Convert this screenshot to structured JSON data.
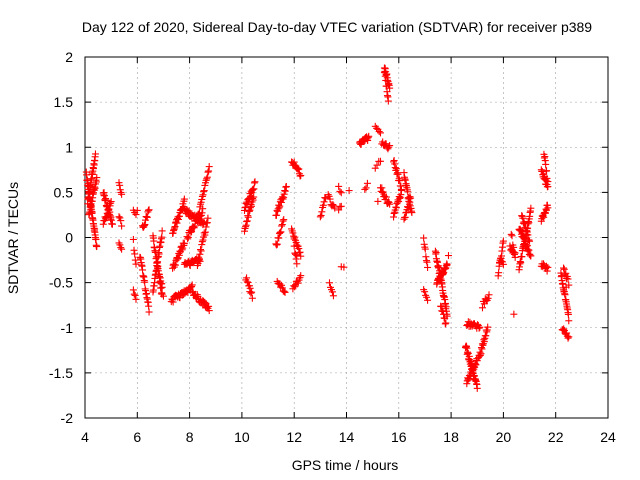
{
  "chart_data": {
    "type": "scatter",
    "title": "Day 122 of 2020, Sidereal Day-to-day VTEC variation (SDTVAR) for receiver p389",
    "xlabel": "GPS time / hours",
    "ylabel": "SDTVAR / TECUs",
    "xlim": [
      4,
      24
    ],
    "ylim": [
      -2,
      2
    ],
    "xticks": [
      4,
      6,
      8,
      10,
      12,
      14,
      16,
      18,
      20,
      22,
      24
    ],
    "yticks": [
      -2,
      -1.5,
      -1,
      -0.5,
      0,
      0.5,
      1,
      1.5,
      2
    ],
    "xtick_labels": [
      "4",
      "6",
      "8",
      "10",
      "12",
      "14",
      "16",
      "18",
      "20",
      "22",
      "24"
    ],
    "ytick_labels": [
      "-2",
      "-1.5",
      "-1",
      "-0.5",
      "0",
      "0.5",
      "1",
      "1.5",
      "2"
    ],
    "grid": true,
    "marker": "+",
    "color": "#ff0000",
    "series": [
      {
        "name": "a1",
        "x0": 4.05,
        "x1": 4.45,
        "y0": 0.7,
        "y1": -0.1,
        "n": 40
      },
      {
        "name": "a2",
        "x0": 4.1,
        "x1": 4.4,
        "y0": 0.4,
        "y1": 0.9,
        "n": 25
      },
      {
        "name": "a3",
        "x0": 4.15,
        "x1": 4.45,
        "y0": 0.25,
        "y1": 0.65,
        "n": 20
      },
      {
        "name": "a4",
        "x0": 4.7,
        "x1": 5.05,
        "y0": 0.5,
        "y1": 0.15,
        "n": 25
      },
      {
        "name": "a5",
        "x0": 4.7,
        "x1": 5.0,
        "y0": 0.15,
        "y1": 0.4,
        "n": 15
      },
      {
        "name": "a6",
        "x0": 5.3,
        "x1": 5.4,
        "y0": 0.6,
        "y1": 0.45,
        "n": 5
      },
      {
        "name": "a7",
        "x0": 5.3,
        "x1": 5.4,
        "y0": 0.25,
        "y1": 0.15,
        "n": 4
      },
      {
        "name": "a8",
        "x0": 5.3,
        "x1": 5.4,
        "y0": -0.05,
        "y1": -0.15,
        "n": 4
      },
      {
        "name": "b1",
        "x0": 5.85,
        "x1": 5.95,
        "y0": 0.3,
        "y1": 0.25,
        "n": 3
      },
      {
        "name": "b2",
        "x0": 5.85,
        "x1": 5.95,
        "y0": -0.05,
        "y1": -0.3,
        "n": 5
      },
      {
        "name": "b3",
        "x0": 5.85,
        "x1": 5.95,
        "y0": -0.6,
        "y1": -0.7,
        "n": 4
      },
      {
        "name": "b4",
        "x0": 6.1,
        "x1": 6.45,
        "y0": -0.2,
        "y1": -0.8,
        "n": 22
      },
      {
        "name": "b5",
        "x0": 6.2,
        "x1": 6.45,
        "y0": 0.1,
        "y1": 0.3,
        "n": 12
      },
      {
        "name": "b6",
        "x0": 6.6,
        "x1": 6.95,
        "y0": 0.0,
        "y1": -0.65,
        "n": 25
      },
      {
        "name": "b7",
        "x0": 6.6,
        "x1": 6.95,
        "y0": -0.6,
        "y1": 0.05,
        "n": 25
      },
      {
        "name": "b8",
        "x0": 6.75,
        "x1": 6.95,
        "y0": -0.3,
        "y1": -0.55,
        "n": 12
      },
      {
        "name": "c1",
        "x0": 7.35,
        "x1": 7.8,
        "y0": 0.05,
        "y1": 0.4,
        "n": 25
      },
      {
        "name": "c2",
        "x0": 7.35,
        "x1": 7.8,
        "y0": -0.35,
        "y1": -0.05,
        "n": 22
      },
      {
        "name": "c3",
        "x0": 7.3,
        "x1": 8.1,
        "y0": -0.7,
        "y1": -0.55,
        "n": 35
      },
      {
        "name": "c4",
        "x0": 7.8,
        "x1": 8.55,
        "y0": 0.3,
        "y1": 0.15,
        "n": 35
      },
      {
        "name": "c5",
        "x0": 7.8,
        "x1": 8.4,
        "y0": -0.3,
        "y1": -0.25,
        "n": 25
      },
      {
        "name": "c6",
        "x0": 7.9,
        "x1": 8.5,
        "y0": 0.0,
        "y1": 0.3,
        "n": 25
      },
      {
        "name": "c7",
        "x0": 8.1,
        "x1": 8.75,
        "y0": -0.6,
        "y1": -0.8,
        "n": 28
      },
      {
        "name": "c8",
        "x0": 8.3,
        "x1": 8.75,
        "y0": 0.2,
        "y1": 0.78,
        "n": 20
      },
      {
        "name": "c9",
        "x0": 8.3,
        "x1": 8.7,
        "y0": -0.3,
        "y1": 0.2,
        "n": 18
      },
      {
        "name": "d1",
        "x0": 10.1,
        "x1": 10.5,
        "y0": 0.3,
        "y1": 0.6,
        "n": 20
      },
      {
        "name": "d2",
        "x0": 10.1,
        "x1": 10.45,
        "y0": 0.1,
        "y1": 0.45,
        "n": 18
      },
      {
        "name": "d3",
        "x0": 10.15,
        "x1": 10.4,
        "y0": -0.45,
        "y1": -0.65,
        "n": 10
      },
      {
        "name": "e1",
        "x0": 11.3,
        "x1": 11.7,
        "y0": 0.25,
        "y1": 0.55,
        "n": 20
      },
      {
        "name": "e2",
        "x0": 11.3,
        "x1": 11.6,
        "y0": -0.1,
        "y1": 0.2,
        "n": 12
      },
      {
        "name": "e3",
        "x0": 11.35,
        "x1": 11.65,
        "y0": -0.5,
        "y1": -0.6,
        "n": 10
      },
      {
        "name": "e4",
        "x0": 11.9,
        "x1": 12.25,
        "y0": 0.85,
        "y1": 0.7,
        "n": 15
      },
      {
        "name": "e5",
        "x0": 11.9,
        "x1": 12.25,
        "y0": 0.1,
        "y1": -0.2,
        "n": 15
      },
      {
        "name": "e6",
        "x0": 11.95,
        "x1": 12.25,
        "y0": -0.55,
        "y1": -0.45,
        "n": 10
      },
      {
        "name": "e7",
        "x0": 12.0,
        "x1": 12.1,
        "y0": -0.1,
        "y1": -0.3,
        "n": 5
      },
      {
        "name": "f1",
        "x0": 13.0,
        "x1": 13.2,
        "y0": 0.2,
        "y1": 0.45,
        "n": 8
      },
      {
        "name": "f2",
        "x0": 13.3,
        "x1": 13.55,
        "y0": 0.45,
        "y1": 0.3,
        "n": 8
      },
      {
        "name": "f3",
        "x0": 13.35,
        "x1": 13.5,
        "y0": -0.5,
        "y1": -0.65,
        "n": 5
      },
      {
        "name": "f4",
        "x0": 13.7,
        "x1": 13.8,
        "y0": 0.55,
        "y1": 0.5,
        "n": 3
      },
      {
        "name": "f5",
        "x0": 13.7,
        "x1": 13.8,
        "y0": 0.3,
        "y1": 0.35,
        "n": 3
      },
      {
        "name": "f6",
        "x0": 13.8,
        "x1": 13.9,
        "y0": -0.35,
        "y1": -0.35,
        "n": 2
      },
      {
        "name": "g1",
        "x0": 14.5,
        "x1": 14.85,
        "y0": 1.05,
        "y1": 1.1,
        "n": 18
      },
      {
        "name": "g2",
        "x0": 14.7,
        "x1": 14.8,
        "y0": 0.55,
        "y1": 0.6,
        "n": 3
      },
      {
        "name": "g3",
        "x0": 15.1,
        "x1": 15.3,
        "y0": 1.22,
        "y1": 1.18,
        "n": 5
      },
      {
        "name": "g4",
        "x0": 15.1,
        "x1": 15.3,
        "y0": 0.75,
        "y1": 0.85,
        "n": 4
      },
      {
        "name": "g5",
        "x0": 15.35,
        "x1": 15.65,
        "y0": 1.05,
        "y1": 1.0,
        "n": 10
      },
      {
        "name": "g6",
        "x0": 15.3,
        "x1": 15.65,
        "y0": 0.55,
        "y1": 0.35,
        "n": 15
      },
      {
        "name": "g7",
        "x0": 15.45,
        "x1": 15.65,
        "y0": 1.9,
        "y1": 1.65,
        "n": 14
      },
      {
        "name": "g8",
        "x0": 15.45,
        "x1": 15.6,
        "y0": 1.85,
        "y1": 1.5,
        "n": 10
      },
      {
        "name": "h1",
        "x0": 15.8,
        "x1": 16.1,
        "y0": 0.85,
        "y1": 0.55,
        "n": 15
      },
      {
        "name": "h2",
        "x0": 15.8,
        "x1": 16.1,
        "y0": 0.25,
        "y1": 0.5,
        "n": 15
      },
      {
        "name": "h3",
        "x0": 16.2,
        "x1": 16.5,
        "y0": 0.7,
        "y1": 0.25,
        "n": 20
      },
      {
        "name": "h4",
        "x0": 16.2,
        "x1": 16.45,
        "y0": 0.2,
        "y1": 0.45,
        "n": 12
      },
      {
        "name": "i1",
        "x0": 16.95,
        "x1": 17.1,
        "y0": 0.0,
        "y1": -0.35,
        "n": 8
      },
      {
        "name": "i2",
        "x0": 16.95,
        "x1": 17.1,
        "y0": -0.6,
        "y1": -0.7,
        "n": 5
      },
      {
        "name": "i3",
        "x0": 17.4,
        "x1": 17.85,
        "y0": -0.15,
        "y1": -0.85,
        "n": 35
      },
      {
        "name": "i4",
        "x0": 17.45,
        "x1": 17.85,
        "y0": -0.5,
        "y1": -0.3,
        "n": 25
      },
      {
        "name": "i5",
        "x0": 17.6,
        "x1": 17.8,
        "y0": -0.75,
        "y1": -0.95,
        "n": 10
      },
      {
        "name": "j1",
        "x0": 18.55,
        "x1": 19.0,
        "y0": -1.2,
        "y1": -1.65,
        "n": 35
      },
      {
        "name": "j2",
        "x0": 18.6,
        "x1": 19.0,
        "y0": -1.6,
        "y1": -1.35,
        "n": 25
      },
      {
        "name": "j3",
        "x0": 18.6,
        "x1": 19.1,
        "y0": -0.95,
        "y1": -1.0,
        "n": 18
      },
      {
        "name": "j4",
        "x0": 19.05,
        "x1": 19.4,
        "y0": -1.35,
        "y1": -1.0,
        "n": 20
      },
      {
        "name": "j5",
        "x0": 19.2,
        "x1": 19.45,
        "y0": -0.75,
        "y1": -0.65,
        "n": 8
      },
      {
        "name": "k1",
        "x0": 19.8,
        "x1": 20.0,
        "y0": -0.4,
        "y1": -0.05,
        "n": 12
      },
      {
        "name": "k2",
        "x0": 19.85,
        "x1": 20.0,
        "y0": -0.25,
        "y1": -0.3,
        "n": 5
      },
      {
        "name": "k3",
        "x0": 20.25,
        "x1": 20.45,
        "y0": -0.1,
        "y1": -0.2,
        "n": 8
      },
      {
        "name": "k4",
        "x0": 20.3,
        "x1": 20.45,
        "y0": 0.05,
        "y1": -0.25,
        "n": 6
      },
      {
        "name": "k5",
        "x0": 20.6,
        "x1": 21.05,
        "y0": -0.35,
        "y1": 0.3,
        "n": 30
      },
      {
        "name": "k6",
        "x0": 20.6,
        "x1": 21.05,
        "y0": 0.1,
        "y1": -0.2,
        "n": 25
      },
      {
        "name": "k7",
        "x0": 20.7,
        "x1": 21.0,
        "y0": 0.25,
        "y1": -0.05,
        "n": 15
      },
      {
        "name": "l1",
        "x0": 21.45,
        "x1": 21.7,
        "y0": 0.75,
        "y1": 0.55,
        "n": 15
      },
      {
        "name": "l2",
        "x0": 21.45,
        "x1": 21.7,
        "y0": 0.2,
        "y1": 0.35,
        "n": 15
      },
      {
        "name": "l3",
        "x0": 21.55,
        "x1": 21.7,
        "y0": 0.95,
        "y1": 0.6,
        "n": 10
      },
      {
        "name": "l4",
        "x0": 21.45,
        "x1": 21.7,
        "y0": -0.3,
        "y1": -0.35,
        "n": 10
      },
      {
        "name": "m1",
        "x0": 22.2,
        "x1": 22.5,
        "y0": -0.4,
        "y1": -0.9,
        "n": 22
      },
      {
        "name": "m2",
        "x0": 22.25,
        "x1": 22.5,
        "y0": -1.0,
        "y1": -1.1,
        "n": 10
      },
      {
        "name": "m3",
        "x0": 22.3,
        "x1": 22.5,
        "y0": -0.35,
        "y1": -0.5,
        "n": 8
      }
    ],
    "points": [
      [
        20.4,
        -0.85
      ],
      [
        17.9,
        -0.2
      ],
      [
        15.2,
        0.4
      ],
      [
        12.1,
        -0.2
      ],
      [
        10.3,
        -0.6
      ],
      [
        6.0,
        0.3
      ],
      [
        7.0,
        -0.65
      ],
      [
        19.35,
        -0.7
      ],
      [
        22.4,
        -0.55
      ],
      [
        14.1,
        0.52
      ]
    ]
  }
}
